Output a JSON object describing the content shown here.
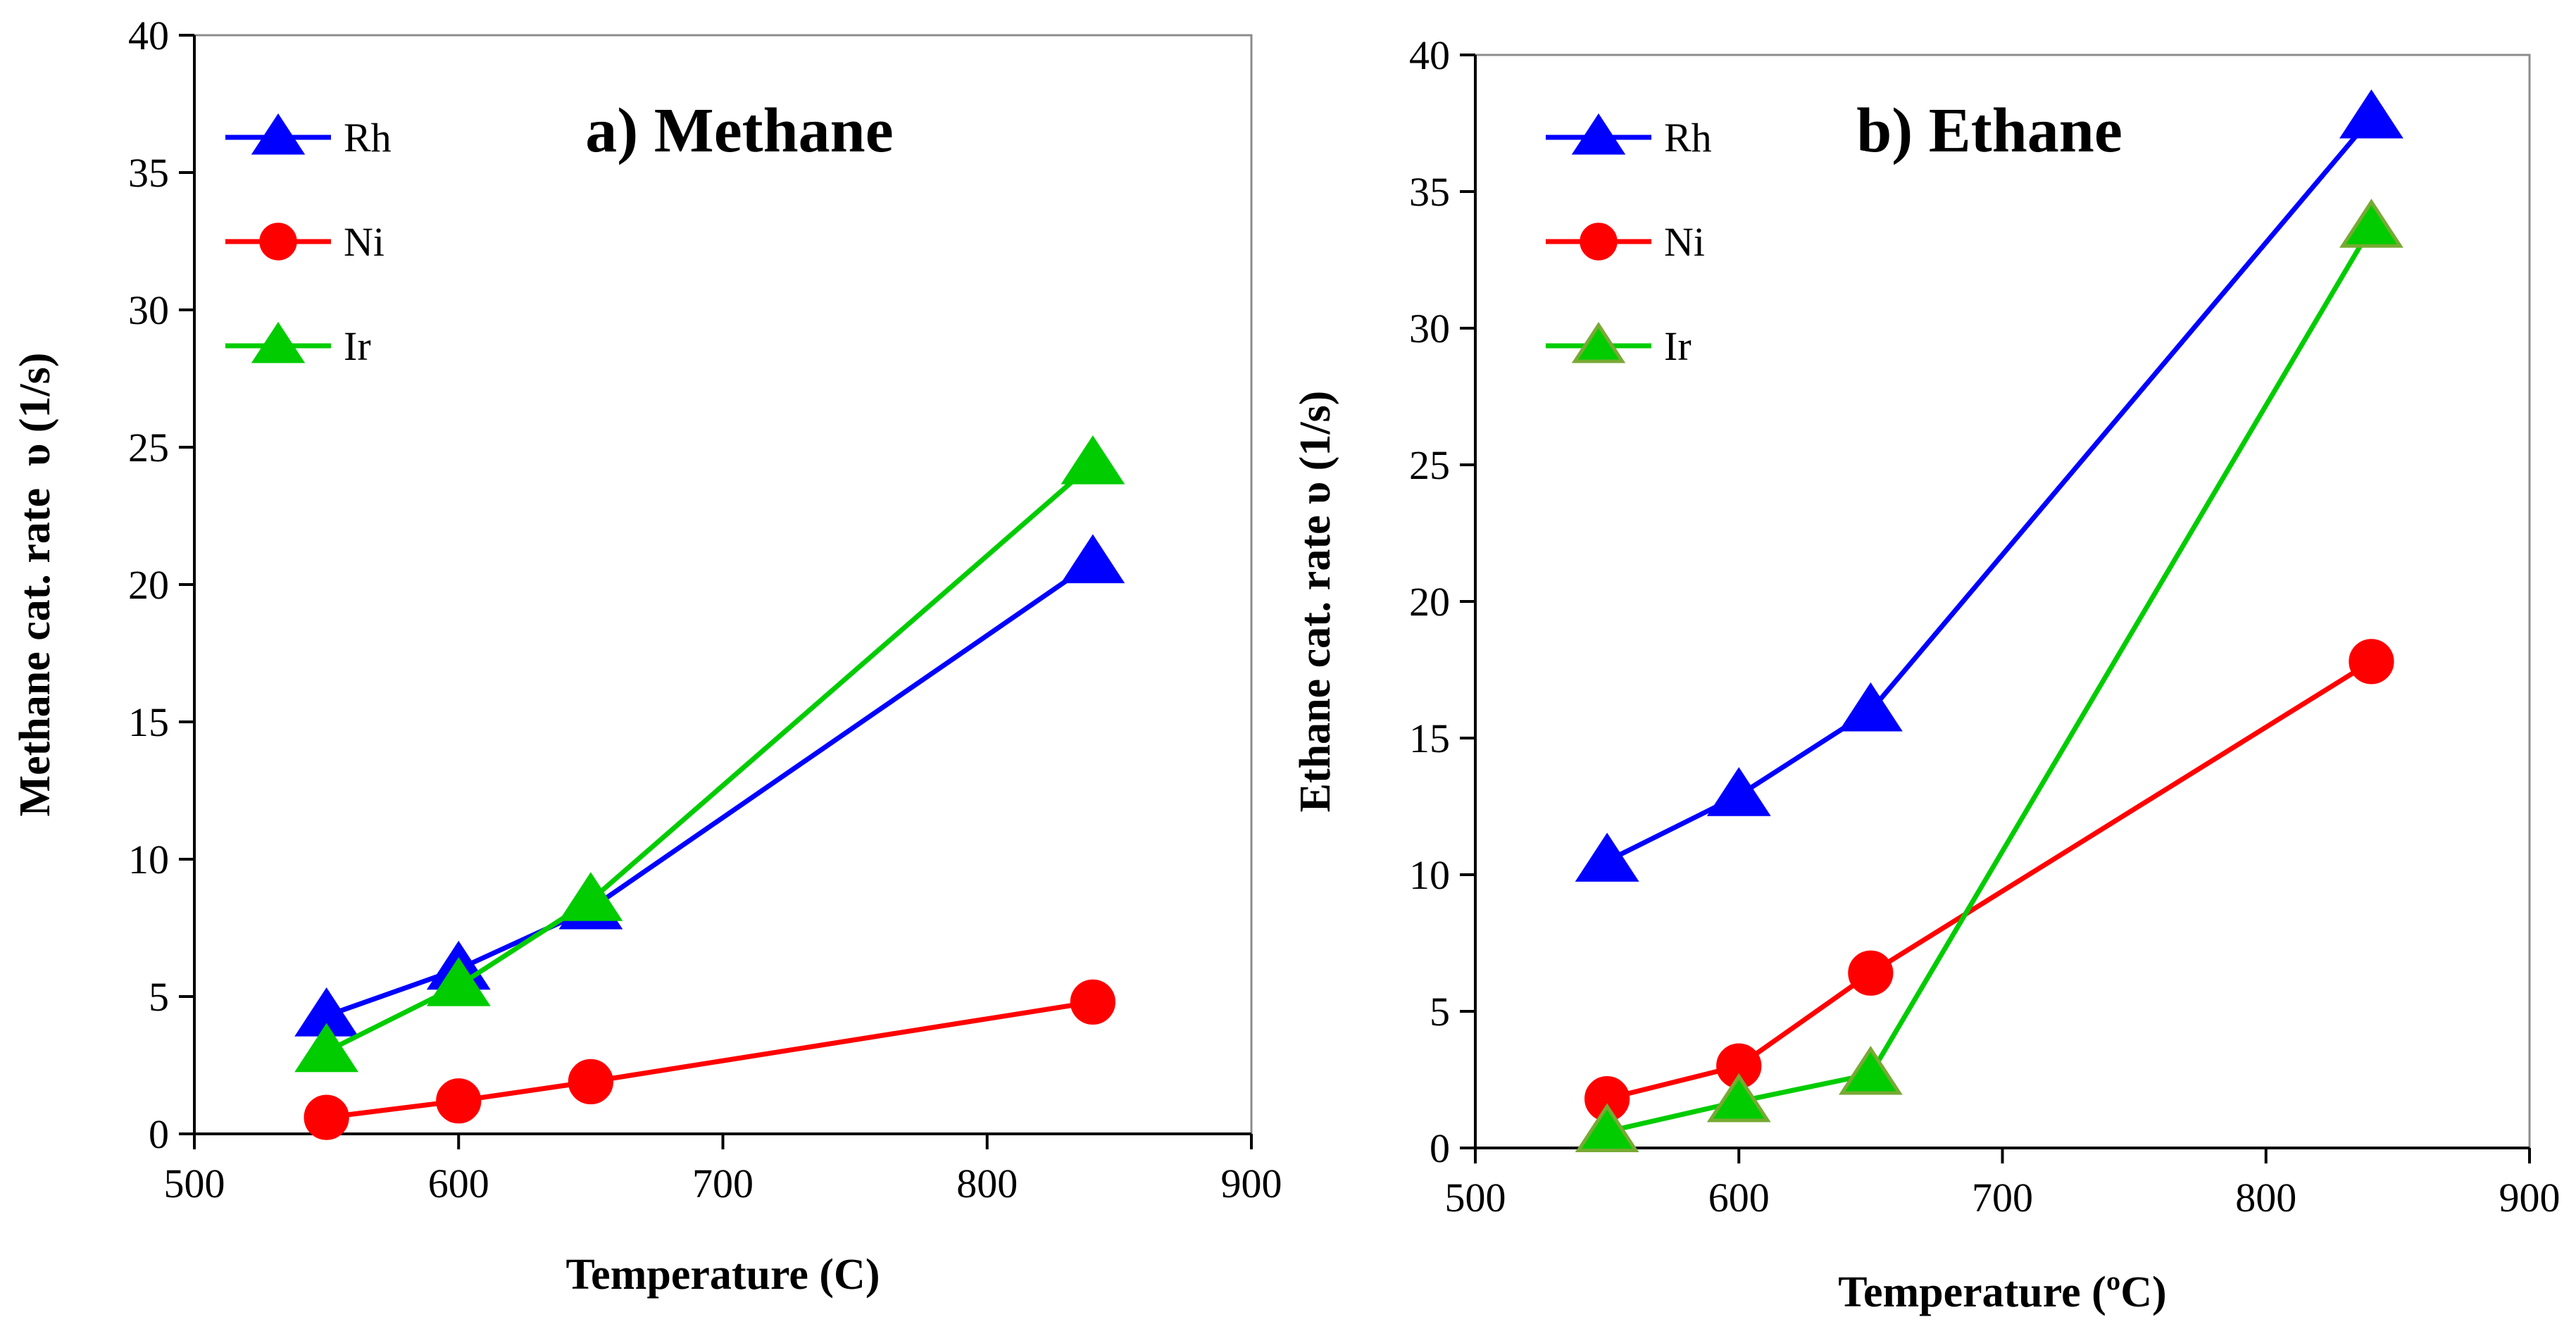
{
  "chart_data": [
    {
      "type": "line",
      "title": "a) Methane",
      "xlabel": "Temperature (C)",
      "ylabel": "Methane cat. rate  υ (1/s)",
      "xlim": [
        500,
        900
      ],
      "ylim": [
        0,
        40
      ],
      "xticks": [
        500,
        600,
        700,
        800,
        900
      ],
      "yticks": [
        0,
        5,
        10,
        15,
        20,
        25,
        30,
        35,
        40
      ],
      "grid": false,
      "legend_position": "top-left",
      "series": [
        {
          "name": "Rh",
          "color": "#0000ff",
          "marker": "triangle",
          "marker_edge": "#0000ff",
          "points": [
            {
              "x": 550,
              "y": 4.3
            },
            {
              "x": 600,
              "y": 6.0
            },
            {
              "x": 650,
              "y": 8.2
            },
            {
              "x": 840,
              "y": 20.8
            }
          ]
        },
        {
          "name": "Ni",
          "color": "#ff0000",
          "marker": "circle",
          "marker_edge": "#ff0000",
          "points": [
            {
              "x": 550,
              "y": 0.6
            },
            {
              "x": 600,
              "y": 1.2
            },
            {
              "x": 650,
              "y": 1.9
            },
            {
              "x": 840,
              "y": 4.8
            }
          ]
        },
        {
          "name": "Ir",
          "color": "#00cc00",
          "marker": "triangle",
          "marker_edge": "#00cc00",
          "points": [
            {
              "x": 550,
              "y": 3.0
            },
            {
              "x": 600,
              "y": 5.4
            },
            {
              "x": 650,
              "y": 8.5
            },
            {
              "x": 840,
              "y": 24.4
            }
          ]
        }
      ]
    },
    {
      "type": "line",
      "title": "b) Ethane",
      "xlabel": "Temperature (ºC)",
      "ylabel": "Ethane cat. rate υ (1/s)",
      "xlim": [
        500,
        900
      ],
      "ylim": [
        0,
        40
      ],
      "xticks": [
        500,
        600,
        700,
        800,
        900
      ],
      "yticks": [
        0,
        5,
        10,
        15,
        20,
        25,
        30,
        35,
        40
      ],
      "grid": false,
      "legend_position": "top-left",
      "series": [
        {
          "name": "Rh",
          "color": "#0000ff",
          "marker": "triangle",
          "marker_edge": "#0000ff",
          "points": [
            {
              "x": 550,
              "y": 10.5
            },
            {
              "x": 600,
              "y": 12.9
            },
            {
              "x": 650,
              "y": 16.0
            },
            {
              "x": 840,
              "y": 37.7
            }
          ]
        },
        {
          "name": "Ni",
          "color": "#ff0000",
          "marker": "circle",
          "marker_edge": "#ff0000",
          "points": [
            {
              "x": 550,
              "y": 1.8
            },
            {
              "x": 600,
              "y": 3.0
            },
            {
              "x": 650,
              "y": 6.4
            },
            {
              "x": 840,
              "y": 17.8
            }
          ]
        },
        {
          "name": "Ir",
          "color": "#00cc00",
          "marker": "triangle",
          "marker_edge": "#77aa33",
          "points": [
            {
              "x": 550,
              "y": 0.6
            },
            {
              "x": 600,
              "y": 1.7
            },
            {
              "x": 650,
              "y": 2.7
            },
            {
              "x": 840,
              "y": 33.7
            }
          ]
        }
      ]
    }
  ]
}
